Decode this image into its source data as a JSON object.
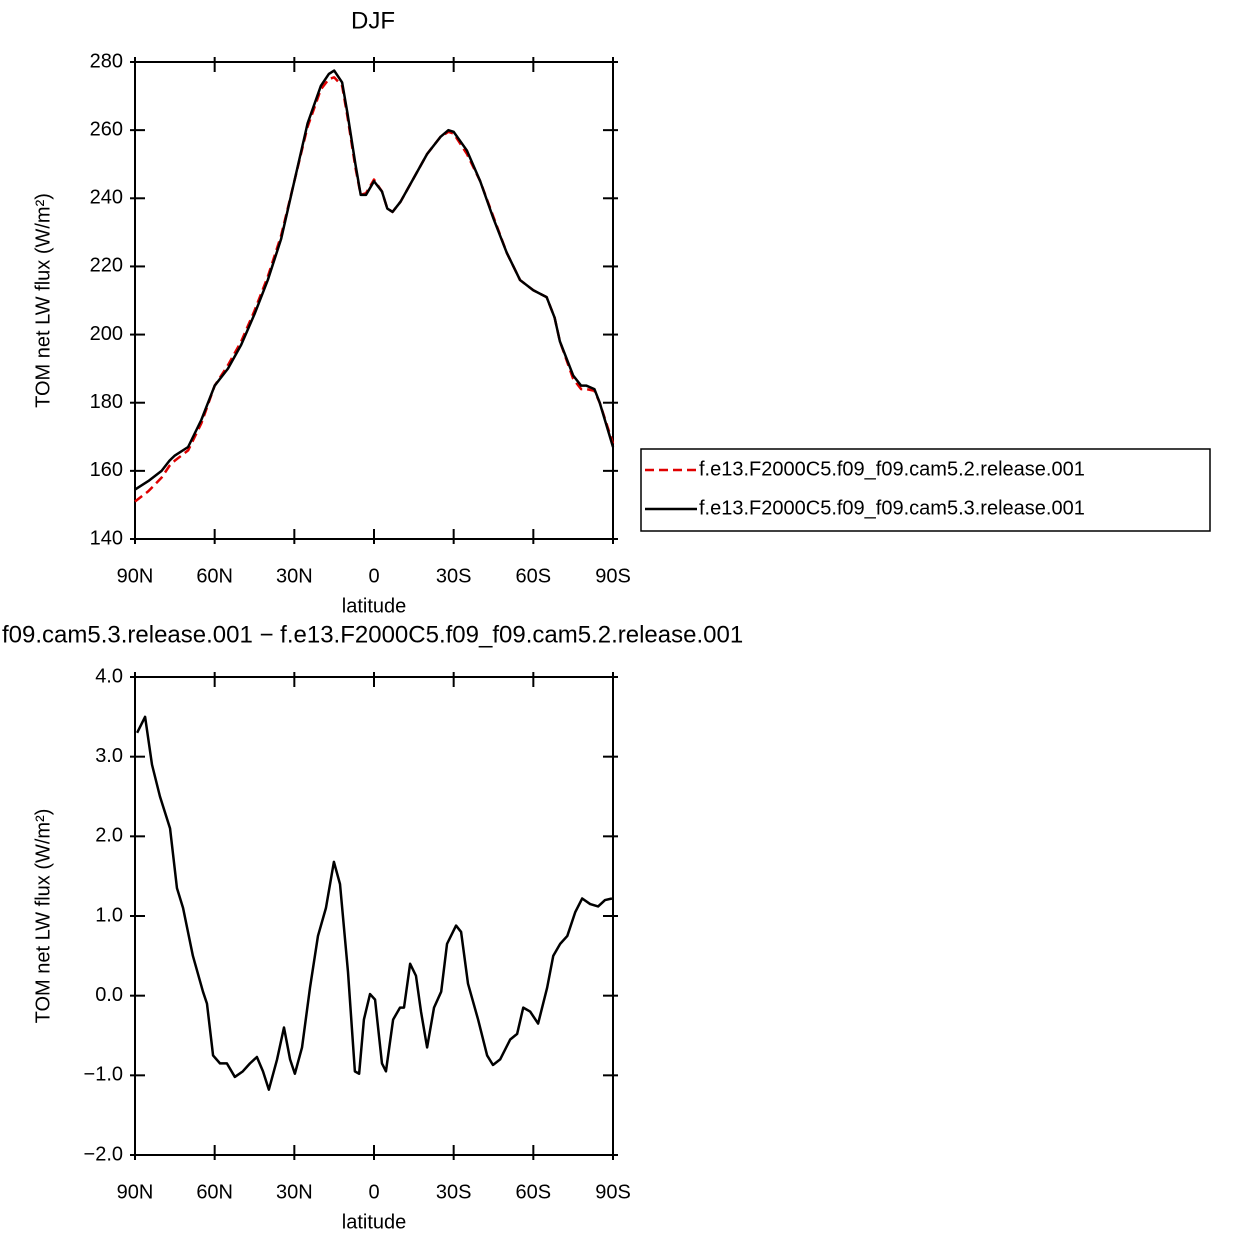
{
  "chart_data": [
    {
      "type": "line",
      "title": "DJF",
      "xlabel": "latitude",
      "ylabel": "TOM net LW flux (W/m²)",
      "xlim": [
        90,
        -90
      ],
      "xticks": [
        {
          "value": 90,
          "label": "90N"
        },
        {
          "value": 60,
          "label": "60N"
        },
        {
          "value": 30,
          "label": "30N"
        },
        0,
        {
          "value": -30,
          "label": "30S"
        },
        {
          "value": -60,
          "label": "60S"
        },
        {
          "value": -90,
          "label": "90S"
        }
      ],
      "ylim": [
        140,
        280
      ],
      "yticks": [
        140,
        160,
        180,
        200,
        220,
        240,
        260,
        280
      ],
      "legend": "right",
      "series": [
        {
          "name": "f.e13.F2000C5.f09_f09.cam5.2.release.001",
          "color": "#e00000",
          "dash": true,
          "x": [
            90,
            85,
            80,
            77,
            75,
            70,
            65,
            60,
            55,
            50,
            45,
            40,
            35,
            30,
            25,
            20,
            17,
            15,
            12,
            10,
            7,
            5,
            3,
            0,
            -3,
            -5,
            -7,
            -10,
            -15,
            -20,
            -25,
            -28,
            -30,
            -35,
            -40,
            -45,
            -50,
            -55,
            -60,
            -65,
            -68,
            -70,
            -75,
            -78,
            -80,
            -83,
            -85,
            -90
          ],
          "values": [
            151,
            154,
            158,
            161.5,
            163,
            166,
            174,
            185,
            191,
            198,
            207,
            217,
            229,
            245,
            261,
            272,
            275,
            275.5,
            273,
            264,
            249,
            241,
            241.5,
            245.5,
            242,
            237,
            236,
            239,
            246,
            253,
            258,
            259.5,
            259,
            253,
            245,
            234.5,
            224,
            216,
            213,
            211,
            205,
            198,
            187,
            184,
            184,
            183.5,
            180,
            168
          ]
        },
        {
          "name": "f.e13.F2000C5.f09_f09.cam5.3.release.001",
          "color": "#000000",
          "dash": false,
          "x": [
            90,
            85,
            80,
            77,
            75,
            70,
            65,
            60,
            55,
            50,
            45,
            40,
            35,
            30,
            25,
            20,
            17,
            15,
            12,
            10,
            7,
            5,
            3,
            0,
            -3,
            -5,
            -7,
            -10,
            -15,
            -20,
            -25,
            -28,
            -30,
            -35,
            -40,
            -45,
            -50,
            -55,
            -60,
            -65,
            -68,
            -70,
            -75,
            -78,
            -80,
            -83,
            -85,
            -90
          ],
          "values": [
            154.5,
            157,
            160,
            163,
            164.5,
            167,
            175,
            185,
            190,
            197,
            206,
            216,
            228,
            245,
            262,
            273,
            276.5,
            277.5,
            274,
            265,
            250,
            241,
            241,
            245,
            242,
            237,
            236,
            239,
            246,
            253,
            258,
            260,
            259.5,
            254,
            245,
            234,
            224,
            216,
            213,
            211,
            205,
            198,
            188,
            185,
            185,
            184,
            180,
            167
          ]
        }
      ]
    },
    {
      "type": "line",
      "title": "f09.cam5.3.release.001 − f.e13.F2000C5.f09_f09.cam5.2.release.001",
      "xlabel": "latitude",
      "ylabel": "TOM net LW flux (W/m²)",
      "xlim": [
        90,
        -90
      ],
      "xticks": [
        {
          "value": 90,
          "label": "90N"
        },
        {
          "value": 60,
          "label": "60N"
        },
        {
          "value": 30,
          "label": "30N"
        },
        0,
        {
          "value": -30,
          "label": "30S"
        },
        {
          "value": -60,
          "label": "60S"
        },
        {
          "value": -90,
          "label": "90S"
        }
      ],
      "ylim": [
        -2,
        4
      ],
      "yticks": [
        {
          "value": -2,
          "label": "−2.0"
        },
        {
          "value": -1,
          "label": "−1.0"
        },
        {
          "value": 0,
          "label": "0.0"
        },
        {
          "value": 1,
          "label": "1.0"
        },
        {
          "value": 2,
          "label": "2.0"
        },
        {
          "value": 3,
          "label": "3.0"
        },
        {
          "value": 4,
          "label": "4.0"
        }
      ],
      "series": [
        {
          "color": "#000000",
          "dash": false,
          "x": [
            89.2,
            86.2,
            83.6,
            80.6,
            76.8,
            74.2,
            71.9,
            68.2,
            64.4,
            62.9,
            60.6,
            58,
            55.4,
            52.4,
            49.4,
            46.7,
            44.1,
            41.8,
            39.6,
            36.5,
            33.9,
            31.6,
            29.8,
            27.1,
            24.1,
            21.1,
            18.1,
            15.1,
            12.8,
            9.8,
            7.2,
            5.6,
            3.8,
            1.5,
            -0.4,
            -3,
            -4.5,
            -7.2,
            -9.8,
            -11.3,
            -13.6,
            -15.8,
            -17.7,
            -20,
            -22.6,
            -25.3,
            -27.5,
            -30.9,
            -32.8,
            -35.4,
            -39.2,
            -42.6,
            -44.8,
            -47.5,
            -51.3,
            -53.9,
            -56.2,
            -58.8,
            -61.8,
            -65.2,
            -67.5,
            -70.1,
            -72.8,
            -75.8,
            -78.4,
            -81.4,
            -84.4,
            -87,
            -89.6
          ],
          "values": [
            3.3,
            3.5,
            2.9,
            2.5,
            2.1,
            1.35,
            1.1,
            0.5,
            0.05,
            -0.1,
            -0.75,
            -0.85,
            -0.85,
            -1.02,
            -0.95,
            -0.85,
            -0.77,
            -0.95,
            -1.18,
            -0.8,
            -0.4,
            -0.8,
            -0.98,
            -0.65,
            0.1,
            0.75,
            1.1,
            1.68,
            1.4,
            0.3,
            -0.95,
            -0.98,
            -0.3,
            0.02,
            -0.05,
            -0.85,
            -0.95,
            -0.3,
            -0.15,
            -0.15,
            0.4,
            0.25,
            -0.2,
            -0.65,
            -0.15,
            0.05,
            0.65,
            0.88,
            0.8,
            0.15,
            -0.3,
            -0.75,
            -0.87,
            -0.8,
            -0.55,
            -0.48,
            -0.15,
            -0.2,
            -0.35,
            0.1,
            0.5,
            0.65,
            0.75,
            1.05,
            1.22,
            1.15,
            1.12,
            1.2,
            1.22
          ]
        }
      ]
    }
  ]
}
